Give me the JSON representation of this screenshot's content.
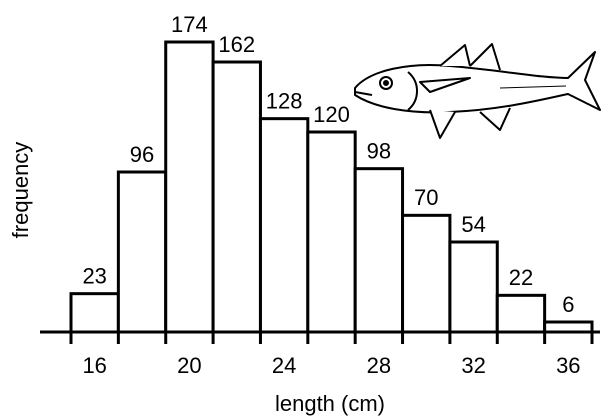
{
  "chart_data": {
    "type": "histogram",
    "xlabel": "length (cm)",
    "ylabel": "frequency",
    "bins": [
      15,
      17,
      19,
      21,
      23,
      25,
      27,
      29,
      31,
      33,
      35,
      37
    ],
    "values": [
      23,
      96,
      174,
      162,
      128,
      120,
      98,
      70,
      54,
      22,
      6
    ],
    "xlim": [
      15,
      37
    ],
    "ylim": [
      0,
      180
    ],
    "xticks": [
      16,
      20,
      24,
      28,
      32,
      36
    ],
    "color": "#ffffff"
  }
}
